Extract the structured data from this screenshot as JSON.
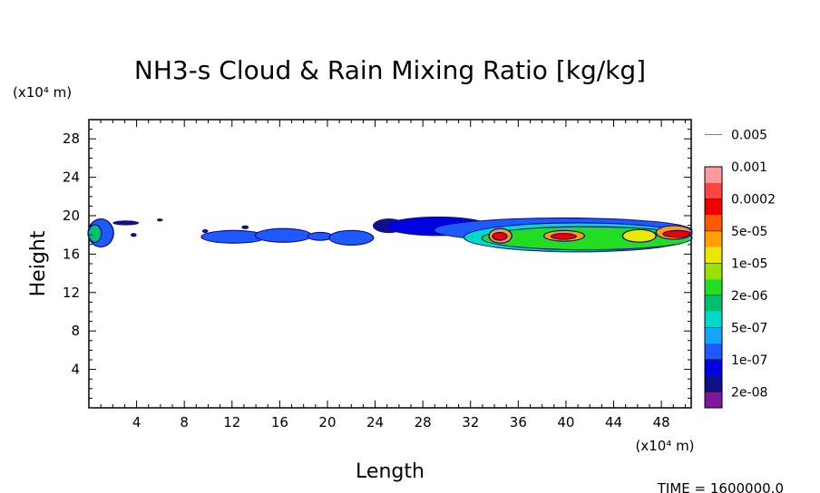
{
  "chart_data": {
    "type": "heatmap",
    "title": "NH3-s Cloud & Rain Mixing Ratio [kg/kg]",
    "xlabel": "Length",
    "ylabel": "Height",
    "x_unit": "(x10⁴ m)",
    "y_unit": "(x10⁴ m)",
    "xlim": [
      0,
      50.5
    ],
    "ylim": [
      0,
      30
    ],
    "x_ticks": [
      4,
      8,
      12,
      16,
      20,
      24,
      28,
      32,
      36,
      40,
      44,
      48
    ],
    "y_ticks": [
      4,
      8,
      12,
      16,
      20,
      24,
      28
    ],
    "grid": false,
    "footer": "TIME = 1600000.0",
    "colorbar": {
      "colors": [
        "#7a1a9a",
        "#10108a",
        "#0000e0",
        "#1e5aff",
        "#16a6ff",
        "#00d8c8",
        "#00c070",
        "#22dd22",
        "#9ae000",
        "#e8e800",
        "#ffa000",
        "#ff5a00",
        "#ee0000",
        "#ff4444",
        "#ff9a9a"
      ],
      "labels": [
        "2e-08",
        "1e-07",
        "5e-07",
        "2e-06",
        "1e-05",
        "5e-05",
        "0.0002",
        "0.001",
        "0.005"
      ]
    },
    "regions": [
      {
        "x0": 0.0,
        "x1": 2.0,
        "y0": 16.8,
        "y1": 19.6,
        "level": 3
      },
      {
        "x0": 0.0,
        "x1": 1.0,
        "y0": 17.3,
        "y1": 19.0,
        "level": 6
      },
      {
        "x0": 2.0,
        "x1": 4.2,
        "y0": 19.0,
        "y1": 19.5,
        "level": 1
      },
      {
        "x0": 3.5,
        "x1": 4.0,
        "y0": 17.8,
        "y1": 18.2,
        "level": 1
      },
      {
        "x0": 5.7,
        "x1": 6.2,
        "y0": 19.4,
        "y1": 19.7,
        "level": 1
      },
      {
        "x0": 9.5,
        "x1": 10.0,
        "y0": 18.2,
        "y1": 18.6,
        "level": 1
      },
      {
        "x0": 9.5,
        "x1": 14.8,
        "y0": 17.2,
        "y1": 18.4,
        "level": 3
      },
      {
        "x0": 12.8,
        "x1": 13.4,
        "y0": 18.6,
        "y1": 19.0,
        "level": 1
      },
      {
        "x0": 14.0,
        "x1": 18.6,
        "y0": 17.3,
        "y1": 18.6,
        "level": 3
      },
      {
        "x0": 18.4,
        "x1": 20.4,
        "y0": 17.5,
        "y1": 18.2,
        "level": 3
      },
      {
        "x0": 20.2,
        "x1": 23.8,
        "y0": 17.0,
        "y1": 18.4,
        "level": 3
      },
      {
        "x0": 23.8,
        "x1": 26.5,
        "y0": 18.2,
        "y1": 19.7,
        "level": 1
      },
      {
        "x0": 25.0,
        "x1": 33.5,
        "y0": 18.0,
        "y1": 19.8,
        "level": 2
      },
      {
        "x0": 29.0,
        "x1": 50.5,
        "y0": 17.3,
        "y1": 19.7,
        "level": 3
      },
      {
        "x0": 31.5,
        "x1": 50.5,
        "y0": 16.3,
        "y1": 19.2,
        "level": 5
      },
      {
        "x0": 33.0,
        "x1": 50.5,
        "y0": 16.5,
        "y1": 18.8,
        "level": 7
      },
      {
        "x0": 33.6,
        "x1": 35.4,
        "y0": 17.2,
        "y1": 18.6,
        "level": 10
      },
      {
        "x0": 33.9,
        "x1": 35.0,
        "y0": 17.5,
        "y1": 18.2,
        "level": 12
      },
      {
        "x0": 38.2,
        "x1": 41.5,
        "y0": 17.4,
        "y1": 18.4,
        "level": 10
      },
      {
        "x0": 38.8,
        "x1": 40.8,
        "y0": 17.6,
        "y1": 18.1,
        "level": 12
      },
      {
        "x0": 44.8,
        "x1": 47.5,
        "y0": 17.3,
        "y1": 18.5,
        "level": 9
      },
      {
        "x0": 47.6,
        "x1": 50.5,
        "y0": 17.6,
        "y1": 18.9,
        "level": 10
      },
      {
        "x0": 48.2,
        "x1": 50.5,
        "y0": 17.8,
        "y1": 18.4,
        "level": 12
      }
    ]
  }
}
